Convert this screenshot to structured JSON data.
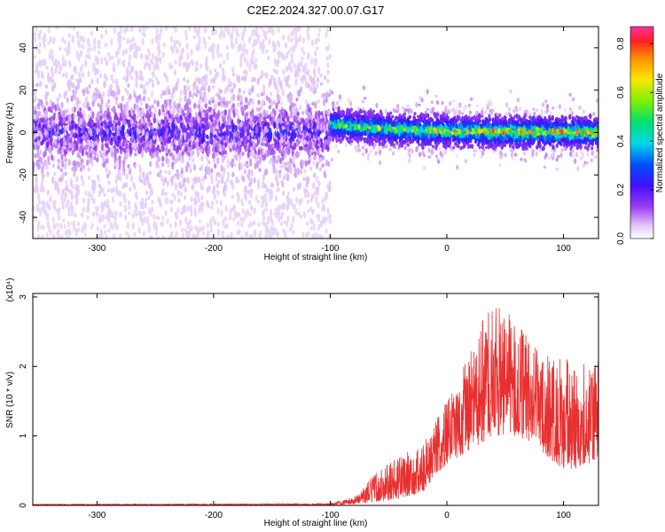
{
  "title": "C2E2.2024.327.00.07.G17",
  "chart_data": [
    {
      "type": "heatmap",
      "xlabel": "Height of straight line (km)",
      "ylabel": "Frequency (Hz)",
      "xlim": [
        -355,
        130
      ],
      "ylim": [
        -50,
        50
      ],
      "xticks": [
        -300,
        -200,
        -100,
        0,
        100
      ],
      "yticks": [
        -40,
        -20,
        0,
        20,
        40
      ],
      "colorbar": {
        "label": "Normalized spectral amplitude",
        "range": [
          0,
          0.87
        ],
        "ticks": [
          0.0,
          0.2,
          0.4,
          0.6,
          0.8
        ]
      },
      "description_regions": [
        {
          "x_range": [
            -355,
            -100
          ],
          "freq_center": 0,
          "freq_spread": 50,
          "max_amplitude": 0.3
        },
        {
          "x_range": [
            -100,
            130
          ],
          "freq_center": 2,
          "freq_spread": 12,
          "max_amplitude": 0.85
        }
      ]
    },
    {
      "type": "line",
      "xlabel": "Height of straight line (km)",
      "ylabel": "SNR (10 * v/v)",
      "y_multiplier": "(x10⁴)",
      "xlim": [
        -355,
        130
      ],
      "ylim": [
        0,
        3.05
      ],
      "xticks": [
        -300,
        -200,
        -100,
        0,
        100
      ],
      "yticks": [
        0,
        1,
        2,
        3
      ],
      "series": [
        {
          "color": "#e83030",
          "envelope": [
            {
              "x": -355,
              "low": 0.0,
              "high": 0.02
            },
            {
              "x": -100,
              "low": 0.0,
              "high": 0.03
            },
            {
              "x": -80,
              "low": 0.02,
              "high": 0.12
            },
            {
              "x": -60,
              "low": 0.05,
              "high": 0.5
            },
            {
              "x": -40,
              "low": 0.1,
              "high": 0.7
            },
            {
              "x": -20,
              "low": 0.2,
              "high": 0.9
            },
            {
              "x": 0,
              "low": 0.6,
              "high": 1.5
            },
            {
              "x": 20,
              "low": 0.8,
              "high": 2.2
            },
            {
              "x": 40,
              "low": 1.0,
              "high": 3.05
            },
            {
              "x": 60,
              "low": 1.0,
              "high": 2.6
            },
            {
              "x": 80,
              "low": 0.8,
              "high": 2.3
            },
            {
              "x": 100,
              "low": 0.5,
              "high": 2.1
            },
            {
              "x": 130,
              "low": 0.6,
              "high": 2.1
            }
          ]
        }
      ]
    }
  ]
}
